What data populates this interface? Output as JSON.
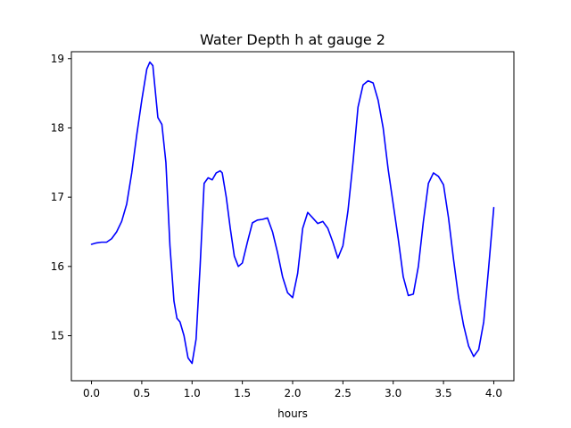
{
  "chart_data": {
    "type": "line",
    "title": "Water Depth h at gauge 2",
    "xlabel": "hours",
    "ylabel": "",
    "xlim": [
      -0.2,
      4.2
    ],
    "ylim": [
      14.35,
      19.1
    ],
    "x_ticks": [
      0.0,
      0.5,
      1.0,
      1.5,
      2.0,
      2.5,
      3.0,
      3.5,
      4.0
    ],
    "x_tick_labels": [
      "0.0",
      "0.5",
      "1.0",
      "1.5",
      "2.0",
      "2.5",
      "3.0",
      "3.5",
      "4.0"
    ],
    "y_ticks": [
      15,
      16,
      17,
      18,
      19
    ],
    "y_tick_labels": [
      "15",
      "16",
      "17",
      "18",
      "19"
    ],
    "grid": false,
    "legend": false,
    "series": [
      {
        "color": "#0000ff",
        "x": [
          0.0,
          0.05,
          0.1,
          0.15,
          0.2,
          0.25,
          0.3,
          0.35,
          0.4,
          0.45,
          0.5,
          0.55,
          0.58,
          0.61,
          0.63,
          0.66,
          0.7,
          0.74,
          0.78,
          0.82,
          0.85,
          0.88,
          0.92,
          0.96,
          1.0,
          1.04,
          1.08,
          1.12,
          1.16,
          1.2,
          1.24,
          1.28,
          1.3,
          1.34,
          1.38,
          1.42,
          1.46,
          1.5,
          1.55,
          1.6,
          1.65,
          1.7,
          1.75,
          1.8,
          1.85,
          1.9,
          1.95,
          2.0,
          2.05,
          2.1,
          2.15,
          2.2,
          2.25,
          2.3,
          2.35,
          2.4,
          2.45,
          2.5,
          2.55,
          2.6,
          2.65,
          2.7,
          2.75,
          2.8,
          2.85,
          2.9,
          2.95,
          3.0,
          3.05,
          3.1,
          3.15,
          3.2,
          3.25,
          3.3,
          3.35,
          3.4,
          3.45,
          3.5,
          3.55,
          3.6,
          3.65,
          3.7,
          3.75,
          3.8,
          3.85,
          3.9,
          3.95,
          4.0
        ],
        "y": [
          16.32,
          16.34,
          16.35,
          16.35,
          16.4,
          16.5,
          16.65,
          16.9,
          17.35,
          17.9,
          18.4,
          18.85,
          18.95,
          18.9,
          18.6,
          18.15,
          18.05,
          17.5,
          16.3,
          15.5,
          15.25,
          15.2,
          15.0,
          14.68,
          14.6,
          14.95,
          16.0,
          17.2,
          17.28,
          17.25,
          17.35,
          17.38,
          17.35,
          17.0,
          16.55,
          16.15,
          16.0,
          16.05,
          16.35,
          16.63,
          16.67,
          16.68,
          16.7,
          16.5,
          16.2,
          15.85,
          15.62,
          15.55,
          15.9,
          16.55,
          16.78,
          16.7,
          16.62,
          16.65,
          16.55,
          16.35,
          16.12,
          16.3,
          16.8,
          17.5,
          18.3,
          18.62,
          18.68,
          18.65,
          18.4,
          18.0,
          17.4,
          16.9,
          16.4,
          15.85,
          15.58,
          15.6,
          16.0,
          16.65,
          17.2,
          17.35,
          17.3,
          17.18,
          16.7,
          16.1,
          15.55,
          15.15,
          14.85,
          14.7,
          14.8,
          15.2,
          16.0,
          16.85
        ]
      }
    ]
  }
}
